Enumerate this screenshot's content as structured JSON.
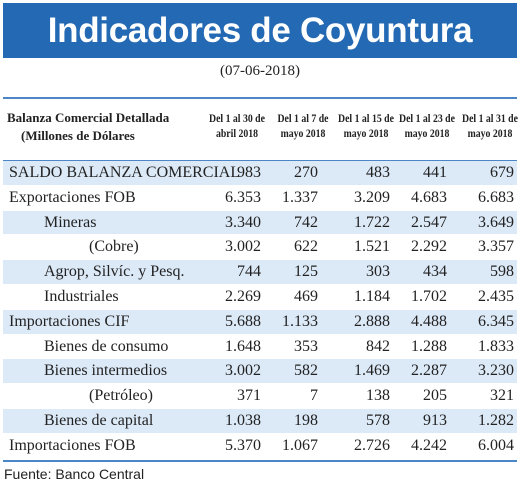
{
  "title": "Indicadores de Coyuntura",
  "date": "(07-06-2018)",
  "table": {
    "header_label_line1": "Balanza Comercial Detallada",
    "header_label_line2": "(Millones de Dólares",
    "columns": [
      {
        "line1": "Del 1 al 30 de",
        "line2": "abril 2018"
      },
      {
        "line1": "Del 1 al 7 de",
        "line2": "mayo 2018"
      },
      {
        "line1": "Del 1 al 15 de",
        "line2": "mayo 2018"
      },
      {
        "line1": "Del 1 al 23 de",
        "line2": "mayo 2018"
      },
      {
        "line1": "Del 1 al 31 de",
        "line2": "mayo 2018"
      }
    ],
    "rows": [
      {
        "label": "SALDO BALANZA COMERCIAL",
        "indent": 0,
        "shaded": true,
        "values": [
          "983",
          "270",
          "483",
          "441",
          "679"
        ]
      },
      {
        "label": "Exportaciones FOB",
        "indent": 0,
        "shaded": false,
        "values": [
          "6.353",
          "1.337",
          "3.209",
          "4.683",
          "6.683"
        ]
      },
      {
        "label": "Mineras",
        "indent": 1,
        "shaded": true,
        "values": [
          "3.340",
          "742",
          "1.722",
          "2.547",
          "3.649"
        ]
      },
      {
        "label": "(Cobre)",
        "indent": 2,
        "shaded": false,
        "values": [
          "3.002",
          "622",
          "1.521",
          "2.292",
          "3.357"
        ]
      },
      {
        "label": "Agrop, Silvíc. y Pesq.",
        "indent": 1,
        "shaded": true,
        "values": [
          "744",
          "125",
          "303",
          "434",
          "598"
        ]
      },
      {
        "label": "Industriales",
        "indent": 1,
        "shaded": false,
        "values": [
          "2.269",
          "469",
          "1.184",
          "1.702",
          "2.435"
        ]
      },
      {
        "label": "Importaciones CIF",
        "indent": 0,
        "shaded": true,
        "values": [
          "5.688",
          "1.133",
          "2.888",
          "4.488",
          "6.345"
        ]
      },
      {
        "label": "Bienes de consumo",
        "indent": 1,
        "shaded": false,
        "values": [
          "1.648",
          "353",
          "842",
          "1.288",
          "1.833"
        ]
      },
      {
        "label": "Bienes intermedios",
        "indent": 1,
        "shaded": true,
        "values": [
          "3.002",
          "582",
          "1.469",
          "2.287",
          "3.230"
        ]
      },
      {
        "label": "(Petróleo)",
        "indent": 2,
        "shaded": false,
        "values": [
          "371",
          "7",
          "138",
          "205",
          "321"
        ]
      },
      {
        "label": "Bienes de capital",
        "indent": 1,
        "shaded": true,
        "values": [
          "1.038",
          "198",
          "578",
          "913",
          "1.282"
        ]
      },
      {
        "label": "Importaciones FOB",
        "indent": 0,
        "shaded": false,
        "values": [
          "5.370",
          "1.067",
          "2.726",
          "4.242",
          "6.004"
        ]
      }
    ]
  },
  "source": "Fuente: Banco Central",
  "colors": {
    "banner": "#2469b3",
    "row_shade": "#dce9f7",
    "rule": "#4d86c6"
  }
}
